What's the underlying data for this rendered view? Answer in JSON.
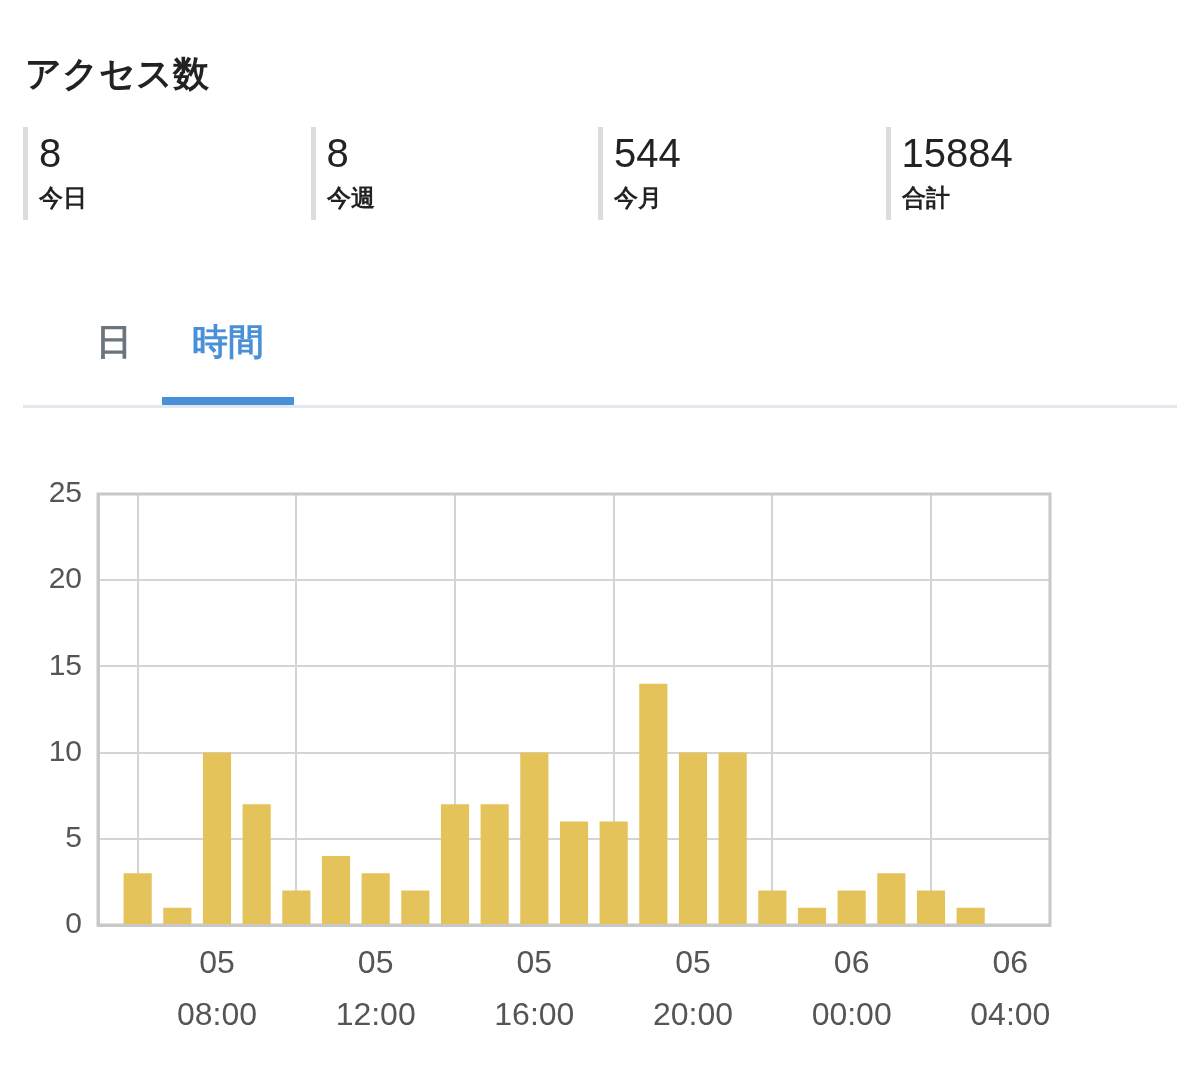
{
  "chart_data": [
    {
      "type": "other",
      "title": "アクセス数",
      "categories": [
        "今日",
        "今週",
        "今月",
        "合計"
      ],
      "values": [
        8,
        8,
        544,
        15884
      ],
      "data_labels": true
    },
    {
      "type": "bar",
      "annotations": [
        "日",
        "時間"
      ],
      "categories": [
        null,
        null,
        null,
        "05\n08:00",
        null,
        null,
        null,
        "05\n12:00",
        null,
        null,
        null,
        "05\n16:00",
        null,
        null,
        null,
        "05\n20:00",
        null,
        null,
        null,
        "06\n00:00",
        null,
        null,
        null,
        "06\n04:00",
        null
      ],
      "values": [
        null,
        3,
        1,
        10,
        7,
        2,
        4,
        3,
        2,
        7,
        7,
        10,
        6,
        6,
        14,
        10,
        10,
        2,
        1,
        2,
        3,
        2,
        1,
        null,
        null
      ],
      "color": "#e4c35a",
      "ylim": [
        0,
        25
      ],
      "yticks": [
        0,
        5,
        10,
        15,
        20,
        25
      ],
      "grid": true
    }
  ]
}
